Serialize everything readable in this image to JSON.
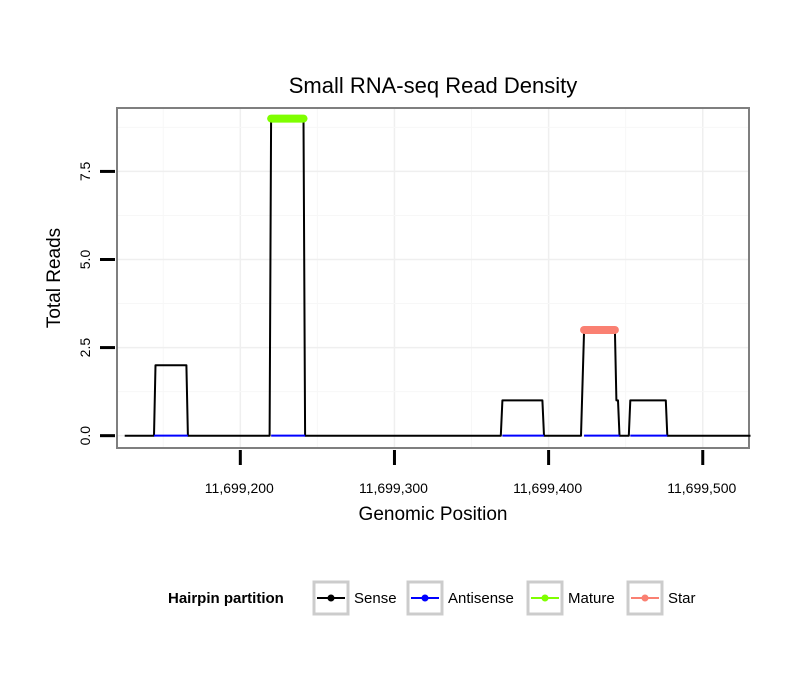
{
  "chart_data": {
    "type": "line",
    "title": "Small RNA-seq Read Density",
    "xlabel": "Genomic Position",
    "ylabel": "Total Reads",
    "xlim": [
      11699120,
      11699530
    ],
    "ylim": [
      -0.35,
      9.3
    ],
    "x_ticks": [
      11699200,
      11699300,
      11699400,
      11699500
    ],
    "x_tick_labels": [
      "11,699,200",
      "11,699,300",
      "11,699,400",
      "11,699,500"
    ],
    "y_ticks": [
      0,
      2.5,
      5,
      7.5
    ],
    "y_tick_labels": [
      "0.0",
      "2.5",
      "5.0",
      "7.5"
    ],
    "grid": true,
    "legend": {
      "title": "Hairpin partition",
      "position": "bottom",
      "entries": [
        {
          "label": "Sense",
          "color": "#000000"
        },
        {
          "label": "Antisense",
          "color": "#0000ff"
        },
        {
          "label": "Mature",
          "color": "#7fff00"
        },
        {
          "label": "Star",
          "color": "#fa8072"
        }
      ]
    },
    "series": [
      {
        "name": "Sense",
        "color": "#000000",
        "x": [
          11699125,
          11699144,
          11699145,
          11699165,
          11699166,
          11699219,
          11699220,
          11699241,
          11699242,
          11699369,
          11699370,
          11699396,
          11699397,
          11699421,
          11699423,
          11699443,
          11699444,
          11699445,
          11699446,
          11699452,
          11699453,
          11699476,
          11699477,
          11699531
        ],
        "values": [
          0,
          0,
          2,
          2,
          0,
          0,
          9,
          9,
          0,
          0,
          1,
          1,
          0,
          0,
          3,
          3,
          1,
          1,
          0,
          0,
          1,
          1,
          0,
          0
        ]
      },
      {
        "name": "Antisense",
        "color": "#0000ff",
        "x": [
          11699144,
          11699166,
          11699220,
          11699242,
          11699370,
          11699397,
          11699423,
          11699446,
          11699453,
          11699477
        ],
        "values": [
          0,
          0,
          0,
          0,
          0,
          0,
          0,
          0,
          0,
          0
        ],
        "segments": [
          [
            0,
            1
          ],
          [
            2,
            3
          ],
          [
            4,
            5
          ],
          [
            6,
            7
          ],
          [
            8,
            9
          ]
        ]
      },
      {
        "name": "Mature",
        "color": "#7fff00",
        "x": [
          11699220,
          11699241
        ],
        "values": [
          9,
          9
        ]
      },
      {
        "name": "Star",
        "color": "#fa8072",
        "x": [
          11699423,
          11699443
        ],
        "values": [
          3,
          3
        ]
      }
    ]
  }
}
